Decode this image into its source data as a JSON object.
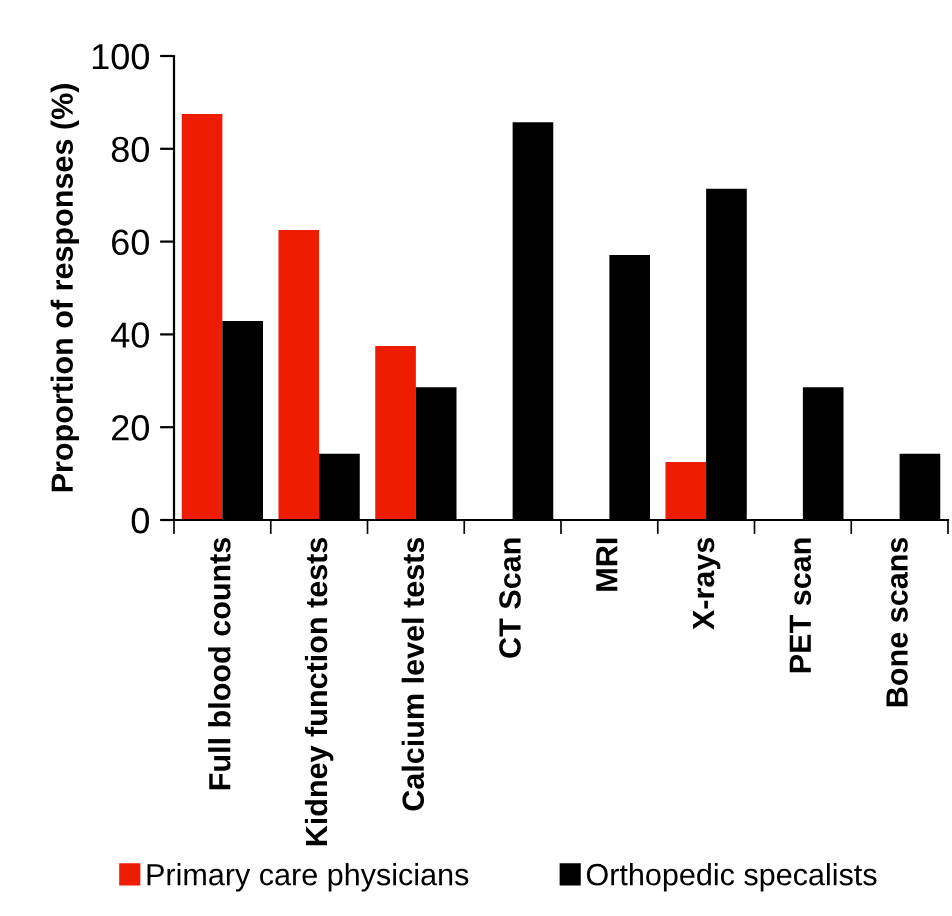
{
  "chart_data": {
    "type": "bar",
    "ylabel": "Proportion of responses (%)",
    "categories": [
      "Full blood counts",
      "Kidney function tests",
      "Calcium level tests",
      "CT Scan",
      "MRI",
      "X-rays",
      "PET scan",
      "Bone scans"
    ],
    "series": [
      {
        "name": "Primary care physicians",
        "color": "#ee1c00",
        "values": [
          87.5,
          62.5,
          37.5,
          0,
          0,
          12.5,
          0,
          0
        ]
      },
      {
        "name": "Orthopedic specalists",
        "color": "#000000",
        "values": [
          42.9,
          14.3,
          28.6,
          85.7,
          57.1,
          71.4,
          28.6,
          14.3
        ]
      }
    ],
    "ylim": [
      0,
      100
    ],
    "yticks": [
      0,
      20,
      40,
      60,
      80,
      100
    ],
    "grid": false,
    "legend": "bottom"
  }
}
